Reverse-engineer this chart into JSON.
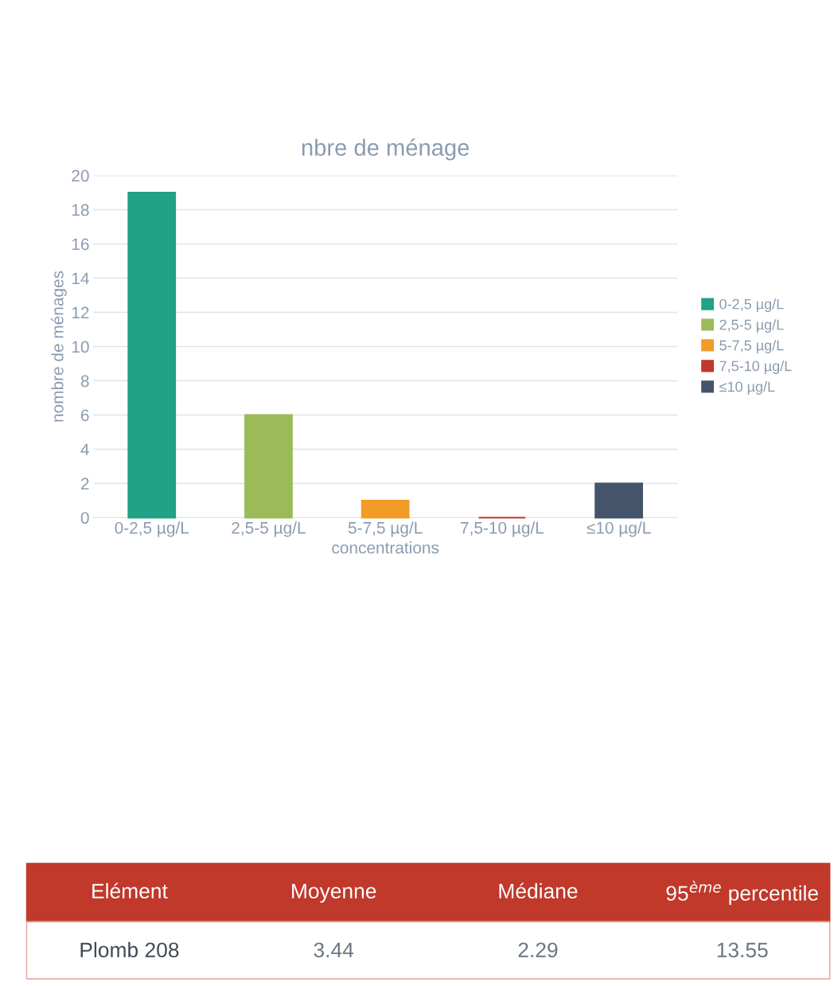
{
  "chart_data": {
    "type": "bar",
    "title": "nbre de ménage",
    "xlabel": "concentrations",
    "ylabel": "nombre de ménages",
    "categories": [
      "0-2,5 µg/L",
      "2,5-5 µg/L",
      "5-7,5 µg/L",
      "7,5-10 µg/L",
      "≤10 µg/L"
    ],
    "series": [
      {
        "name": "0-2,5 µg/L",
        "color": "#21a185",
        "values": [
          19,
          null,
          null,
          null,
          null
        ]
      },
      {
        "name": "2,5-5 µg/L",
        "color": "#9bbb59",
        "values": [
          null,
          6,
          null,
          null,
          null
        ]
      },
      {
        "name": "5-7,5 µg/L",
        "color": "#f29b26",
        "values": [
          null,
          null,
          1,
          null,
          null
        ]
      },
      {
        "name": "7,5-10 µg/L",
        "color": "#c0392b",
        "values": [
          null,
          null,
          null,
          0,
          null
        ]
      },
      {
        "name": "≤10 µg/L",
        "color": "#44546a",
        "values": [
          null,
          null,
          null,
          null,
          2
        ]
      }
    ],
    "ylim": [
      0,
      20
    ],
    "yticks": [
      0,
      2,
      4,
      6,
      8,
      10,
      12,
      14,
      16,
      18,
      20
    ],
    "grid": "y",
    "legend": "right",
    "annotations": [
      "Elément",
      "Moyenne",
      "Médiane",
      "95$^{ème}$ percentile",
      "Plomb 208",
      "3.44",
      "2.29",
      "13.55"
    ]
  }
}
